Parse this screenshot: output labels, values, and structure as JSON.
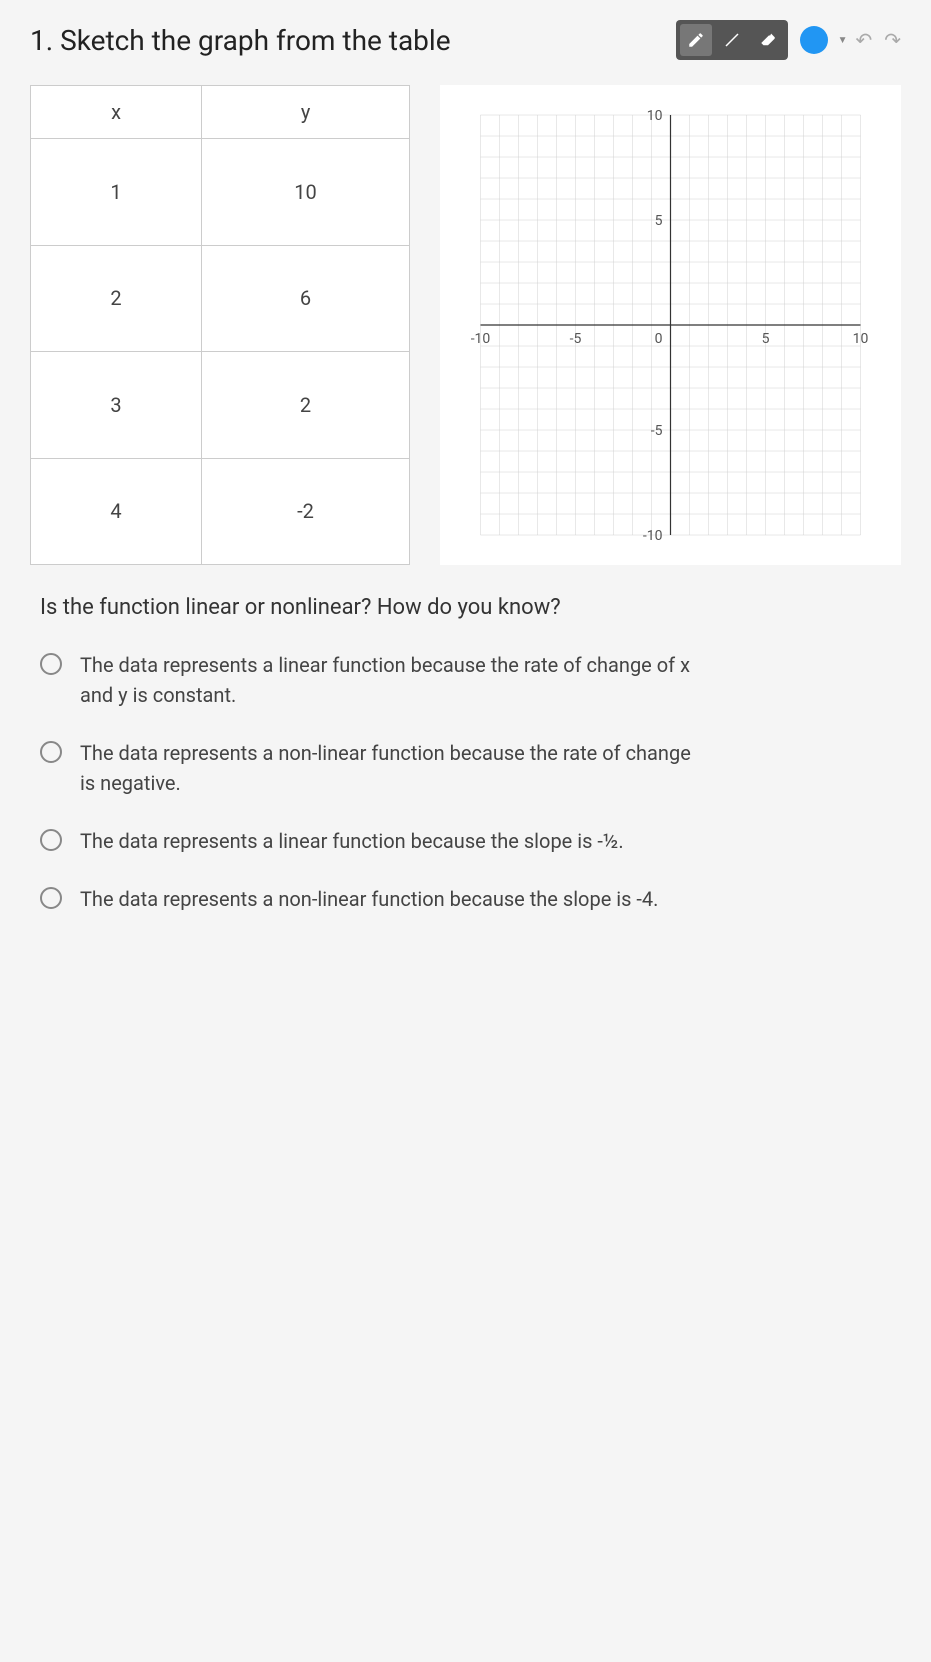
{
  "title": "1. Sketch the graph from the table",
  "toolbar": {
    "tools": [
      "pencil",
      "line",
      "eraser"
    ],
    "active_tool": 0,
    "color": "#2196f3"
  },
  "table": {
    "headers": [
      "x",
      "y"
    ],
    "rows": [
      [
        "1",
        "10"
      ],
      [
        "2",
        "6"
      ],
      [
        "3",
        "2"
      ],
      [
        "4",
        "-2"
      ]
    ]
  },
  "graph": {
    "xlim": [
      -10,
      10
    ],
    "ylim": [
      -10,
      10
    ],
    "xtick_step": 5,
    "ytick_step": 5,
    "grid_color": "#d0d0d0",
    "axis_color": "#333333",
    "background_color": "#ffffff",
    "tick_labels_x": [
      "-10",
      "-5",
      "5",
      "10"
    ],
    "tick_labels_y": [
      "10",
      "5",
      "-5",
      "-10"
    ],
    "label_fontsize": 14,
    "label_color": "#555555"
  },
  "question": "Is the function linear or nonlinear? How do you know?",
  "options": [
    "The data represents a linear function because the rate of change of x and y is constant.",
    "The data represents a non-linear function because the rate of change is negative.",
    "The data represents a linear function because the slope is -½.",
    "The data represents a non-linear function because the slope is -4."
  ]
}
